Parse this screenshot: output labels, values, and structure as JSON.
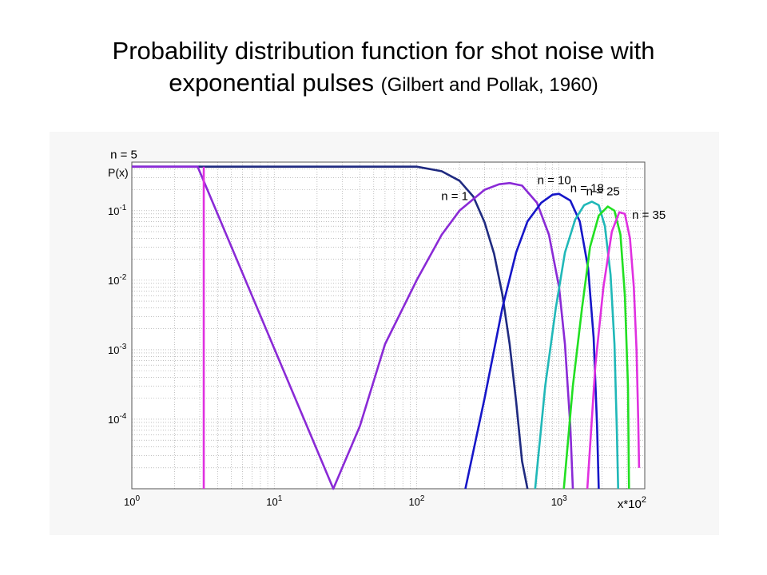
{
  "slide": {
    "title_line1": "Probability distribution function for shot noise with",
    "title_line2_main": "exponential pulses",
    "title_line2_cite": "(Gilbert and Pollak, 1960)"
  },
  "chart_data": {
    "type": "line",
    "ylabel": "P(x)",
    "xlabel_base": "x*10",
    "xlabel_exp": "2",
    "x_scale": "log",
    "y_scale": "log",
    "xlim": [
      1,
      4000
    ],
    "ylim": [
      1e-05,
      0.5
    ],
    "grid": true,
    "x_ticks": [
      {
        "value": 1,
        "base": "10",
        "exp": "0"
      },
      {
        "value": 10,
        "base": "10",
        "exp": "1"
      },
      {
        "value": 100,
        "base": "10",
        "exp": "2"
      },
      {
        "value": 1000,
        "base": "10",
        "exp": "3"
      }
    ],
    "y_ticks": [
      {
        "value": 0.1,
        "base": "10",
        "exp": "-1"
      },
      {
        "value": 0.01,
        "base": "10",
        "exp": "-2"
      },
      {
        "value": 0.001,
        "base": "10",
        "exp": "-3"
      },
      {
        "value": 0.0001,
        "base": "10",
        "exp": "-4"
      }
    ],
    "series": [
      {
        "name": "n = 1",
        "color": "#1f2a80",
        "points": [
          [
            1,
            0.43
          ],
          [
            100,
            0.43
          ],
          [
            150,
            0.37
          ],
          [
            200,
            0.27
          ],
          [
            250,
            0.16
          ],
          [
            300,
            0.068
          ],
          [
            350,
            0.024
          ],
          [
            400,
            0.0062
          ],
          [
            450,
            0.0012
          ],
          [
            500,
            0.00018
          ],
          [
            550,
            2.5e-05
          ],
          [
            600,
            1e-05
          ]
        ]
      },
      {
        "name": "n = 5",
        "color": "#8a2ad6",
        "points": [
          [
            1,
            0.43
          ],
          [
            2.9,
            0.43
          ],
          [
            26,
            1e-05
          ],
          [
            40,
            8e-05
          ],
          [
            60,
            0.0012
          ],
          [
            100,
            0.01
          ],
          [
            150,
            0.045
          ],
          [
            200,
            0.1
          ],
          [
            300,
            0.2
          ],
          [
            380,
            0.24
          ],
          [
            450,
            0.25
          ],
          [
            550,
            0.23
          ],
          [
            700,
            0.13
          ],
          [
            850,
            0.045
          ],
          [
            1000,
            0.008
          ],
          [
            1100,
            0.0012
          ],
          [
            1200,
            8e-05
          ],
          [
            1250,
            1e-05
          ]
        ]
      },
      {
        "name": "n = 10",
        "color": "#1616c8",
        "points": [
          [
            220,
            1e-05
          ],
          [
            300,
            0.0002
          ],
          [
            400,
            0.004
          ],
          [
            500,
            0.025
          ],
          [
            600,
            0.07
          ],
          [
            750,
            0.13
          ],
          [
            900,
            0.17
          ],
          [
            1000,
            0.175
          ],
          [
            1200,
            0.14
          ],
          [
            1400,
            0.07
          ],
          [
            1600,
            0.015
          ],
          [
            1750,
            0.0015
          ],
          [
            1850,
            8e-05
          ],
          [
            1900,
            1e-05
          ]
        ]
      },
      {
        "name": "n = 18",
        "color": "#20b8b8",
        "points": [
          [
            680,
            1e-05
          ],
          [
            800,
            0.0003
          ],
          [
            950,
            0.004
          ],
          [
            1100,
            0.025
          ],
          [
            1300,
            0.075
          ],
          [
            1500,
            0.12
          ],
          [
            1700,
            0.135
          ],
          [
            1900,
            0.12
          ],
          [
            2100,
            0.06
          ],
          [
            2300,
            0.012
          ],
          [
            2450,
            0.0012
          ],
          [
            2550,
            6e-05
          ],
          [
            2600,
            1e-05
          ]
        ]
      },
      {
        "name": "n = 25",
        "color": "#22e022",
        "points": [
          [
            1080,
            1e-05
          ],
          [
            1250,
            0.0003
          ],
          [
            1450,
            0.004
          ],
          [
            1650,
            0.03
          ],
          [
            1900,
            0.085
          ],
          [
            2200,
            0.115
          ],
          [
            2450,
            0.1
          ],
          [
            2700,
            0.045
          ],
          [
            2900,
            0.006
          ],
          [
            3050,
            0.0003
          ],
          [
            3100,
            1e-05
          ]
        ]
      },
      {
        "name": "n = 35",
        "color": "#e030e0",
        "points": [
          [
            1580,
            1e-05
          ],
          [
            1800,
            0.0006
          ],
          [
            2050,
            0.008
          ],
          [
            2350,
            0.05
          ],
          [
            2650,
            0.095
          ],
          [
            2900,
            0.09
          ],
          [
            3150,
            0.04
          ],
          [
            3350,
            0.008
          ],
          [
            3500,
            0.001
          ],
          [
            3600,
            0.0001
          ],
          [
            3650,
            2e-05
          ]
        ]
      }
    ],
    "extra_marks": [
      {
        "name": "vertical-spike",
        "color": "#e030e0",
        "x": 3.2,
        "y_from": 1e-05,
        "y_to": 0.43
      }
    ]
  }
}
